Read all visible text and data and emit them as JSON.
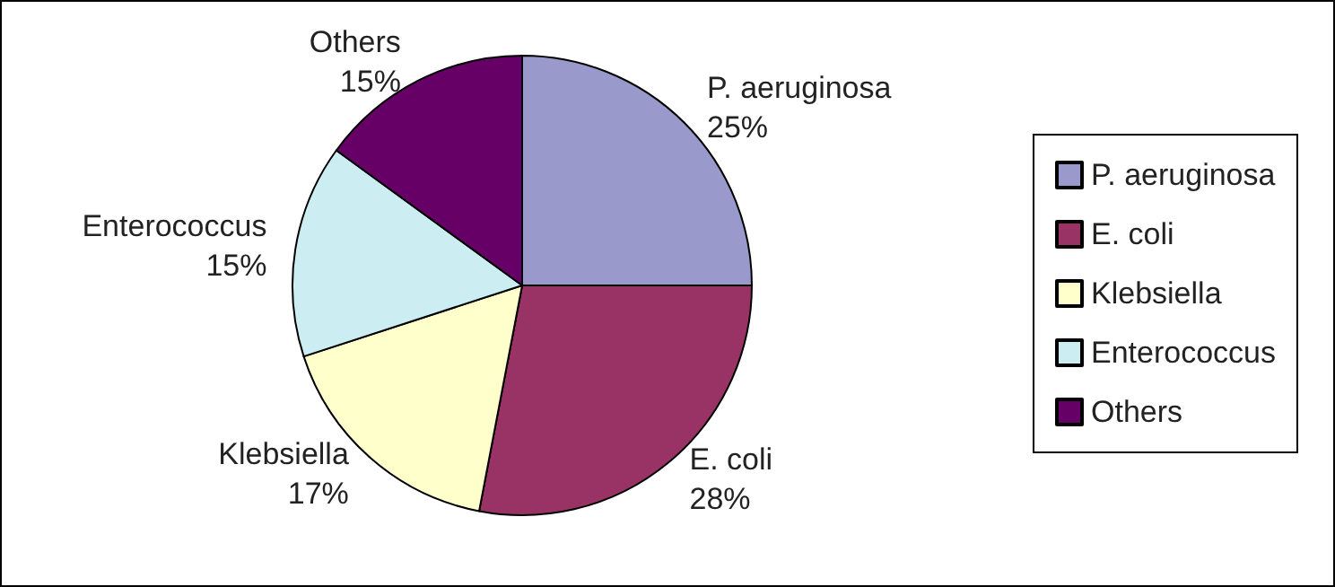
{
  "chart_data": {
    "type": "pie",
    "categories": [
      "P. aeruginosa",
      "E. coli",
      "Klebsiella",
      "Enterococcus",
      "Others"
    ],
    "values": [
      25,
      28,
      17,
      15,
      15
    ],
    "colors": [
      "#9999cc",
      "#993366",
      "#ffffcc",
      "#cceef2",
      "#660066"
    ],
    "value_labels": [
      "25%",
      "28%",
      "17%",
      "15%",
      "15%"
    ],
    "legend": "right"
  }
}
